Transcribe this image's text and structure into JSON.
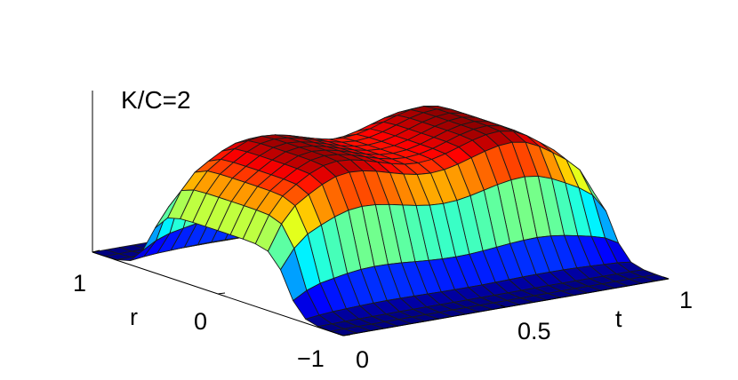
{
  "chart_data": {
    "type": "surface",
    "title": "K/C=2",
    "xlabel": "t",
    "ylabel": "r",
    "zlabel": "",
    "t_ticks": [
      "0",
      "0.5",
      "1"
    ],
    "r_ticks": [
      "−1",
      "0",
      "1"
    ],
    "t_range": [
      0,
      1
    ],
    "r_range": [
      -1,
      1
    ],
    "z_range": [
      0,
      1
    ],
    "colormap": "jet",
    "grid": {
      "t_steps": 24,
      "r_steps": 20
    },
    "ridge_heights": {
      "t": [
        0.0,
        0.25,
        0.5,
        0.75,
        1.0
      ],
      "z": [
        0.62,
        0.82,
        0.72,
        0.83,
        0.6
      ]
    },
    "plateau_half_width_r": 0.55,
    "colors": {
      "low": "#0000ff",
      "mid_low": "#00ffff",
      "mid": "#ffff00",
      "mid_high": "#ff8000",
      "high": "#ff0000"
    }
  }
}
